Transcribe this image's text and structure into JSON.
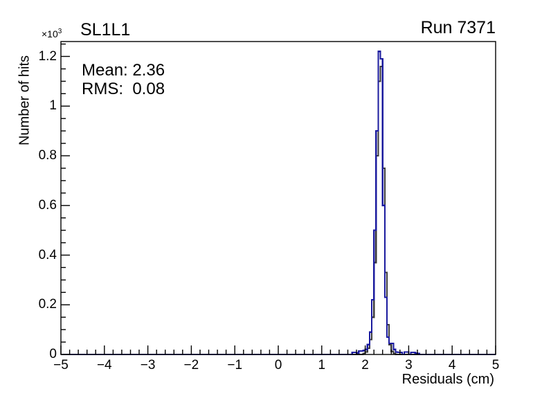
{
  "chart_data": {
    "type": "step-histogram",
    "title_left": "SL1L1",
    "title_right": "Run 7371",
    "xlabel": "Residuals (cm)",
    "ylabel": "Number of hits",
    "y_axis_multiplier": "×10",
    "y_axis_multiplier_exponent": "3",
    "stats": {
      "mean": "Mean: 2.36",
      "rms": "RMS:  0.08"
    },
    "xlim": [
      -5,
      5
    ],
    "ylim_hits": [
      0,
      1260
    ],
    "x_major_tick_step": 1,
    "x_minor_tick_step": 0.2,
    "y_major_tick_step_hits": 200,
    "y_minor_tick_step_hits": 50,
    "grid": false,
    "legend": null,
    "x_ticks": [
      {
        "v": -5,
        "label": "−5"
      },
      {
        "v": -4,
        "label": "−4"
      },
      {
        "v": -3,
        "label": "−3"
      },
      {
        "v": -2,
        "label": "−2"
      },
      {
        "v": -1,
        "label": "−1"
      },
      {
        "v": 0,
        "label": "0"
      },
      {
        "v": 1,
        "label": "1"
      },
      {
        "v": 2,
        "label": "2"
      },
      {
        "v": 3,
        "label": "3"
      },
      {
        "v": 4,
        "label": "4"
      },
      {
        "v": 5,
        "label": "5"
      }
    ],
    "y_ticks": [
      {
        "v": 0,
        "label": "0"
      },
      {
        "v": 200,
        "label": "0.2"
      },
      {
        "v": 400,
        "label": "0.4"
      },
      {
        "v": 600,
        "label": "0.6"
      },
      {
        "v": 800,
        "label": "0.8"
      },
      {
        "v": 1000,
        "label": "1"
      },
      {
        "v": 1200,
        "label": "1.2"
      }
    ],
    "series": [
      {
        "name": "reference-histogram",
        "color": "#3a3a3a",
        "line_width": 2.2,
        "bin_width": 0.05,
        "first_bin_x": 1.95,
        "values": [
          4,
          10,
          25,
          60,
          150,
          370,
          800,
          1100,
          1160,
          750,
          330,
          120,
          40,
          12,
          4
        ]
      },
      {
        "name": "overlay-histogram",
        "color": "#1a1a9e",
        "line_width": 2.2,
        "bin_width": 0.05,
        "first_bin_x": 1.7,
        "values": [
          8,
          8,
          6,
          14,
          14,
          16,
          20,
          40,
          90,
          220,
          500,
          900,
          1220,
          1190,
          600,
          230,
          70,
          45,
          45,
          20,
          10,
          8,
          8,
          0,
          10,
          10,
          0,
          8,
          8,
          5,
          4
        ]
      }
    ]
  }
}
